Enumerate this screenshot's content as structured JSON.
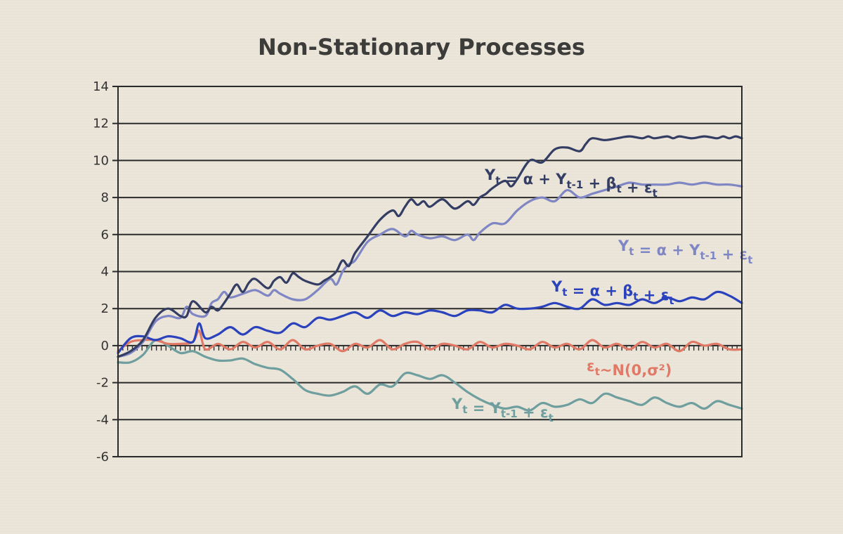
{
  "chart_data": {
    "type": "line",
    "title": "Non-Stationary Processes",
    "xlabel": "",
    "ylabel": "",
    "ylim": [
      -6,
      14
    ],
    "yticks": [
      -6,
      -4,
      -2,
      0,
      2,
      4,
      6,
      8,
      10,
      12,
      14
    ],
    "ytick_labels": [
      "-6",
      "-4",
      "-2",
      "0",
      "2",
      "4",
      "6",
      "8",
      "10",
      "12",
      "14"
    ],
    "xlim": [
      0,
      100
    ],
    "grid": true,
    "series": [
      {
        "name": "Yt = α + Yt-1 + βt + εt",
        "label": [
          [
            "Y",
            ""
          ],
          [
            "t",
            "sub"
          ],
          [
            " = α + Y",
            ""
          ],
          [
            "t-1",
            "sub"
          ],
          [
            " + β",
            ""
          ],
          [
            "t",
            "sub"
          ],
          [
            " + ε",
            ""
          ],
          [
            "t",
            "sub"
          ]
        ],
        "color": "#343d63",
        "x": [
          0,
          2,
          4,
          6,
          8,
          10,
          11,
          12,
          14,
          15,
          16,
          17,
          18,
          19,
          20,
          21,
          22,
          24,
          25,
          26,
          27,
          28,
          29,
          30,
          32,
          33,
          34,
          35,
          36,
          37,
          38,
          40,
          42,
          44,
          45,
          46,
          47,
          48,
          49,
          50,
          52,
          54,
          56,
          57,
          58,
          59,
          60,
          62,
          63,
          64,
          66,
          68,
          70,
          72,
          74,
          75,
          76,
          78,
          80,
          82,
          84,
          85,
          86,
          88,
          89,
          90,
          92,
          94,
          96,
          97,
          98,
          99,
          100
        ],
        "y": [
          -0.6,
          -0.3,
          0.3,
          1.5,
          2.0,
          1.6,
          1.6,
          2.4,
          1.8,
          2.1,
          1.9,
          2.3,
          2.8,
          3.3,
          2.9,
          3.4,
          3.6,
          3.1,
          3.5,
          3.7,
          3.4,
          3.9,
          3.7,
          3.5,
          3.3,
          3.5,
          3.7,
          4.0,
          4.6,
          4.3,
          5.0,
          5.9,
          6.8,
          7.3,
          7.0,
          7.5,
          7.9,
          7.6,
          7.8,
          7.5,
          7.9,
          7.4,
          7.8,
          7.6,
          8.0,
          8.2,
          8.5,
          8.9,
          8.6,
          9.0,
          10.0,
          9.9,
          10.6,
          10.7,
          10.5,
          10.9,
          11.2,
          11.1,
          11.2,
          11.3,
          11.2,
          11.3,
          11.2,
          11.3,
          11.2,
          11.3,
          11.2,
          11.3,
          11.2,
          11.3,
          11.2,
          11.3,
          11.2
        ]
      },
      {
        "name": "Yt = α + Yt-1 + εt",
        "label": [
          [
            "Y",
            ""
          ],
          [
            "t",
            "sub"
          ],
          [
            " = α + Y",
            ""
          ],
          [
            "t-1",
            "sub"
          ],
          [
            " + ε",
            ""
          ],
          [
            "t",
            "sub"
          ]
        ],
        "color": "#7f86c4",
        "x": [
          0,
          2,
          4,
          6,
          8,
          10,
          11,
          12,
          14,
          15,
          16,
          17,
          18,
          20,
          22,
          24,
          25,
          26,
          28,
          30,
          32,
          34,
          35,
          36,
          37,
          38,
          40,
          42,
          44,
          46,
          47,
          48,
          50,
          52,
          54,
          56,
          57,
          58,
          60,
          62,
          64,
          66,
          68,
          70,
          72,
          74,
          76,
          78,
          80,
          82,
          84,
          86,
          88,
          90,
          92,
          94,
          96,
          98,
          100
        ],
        "y": [
          -0.6,
          -0.4,
          0.2,
          1.3,
          1.6,
          1.5,
          2.1,
          1.7,
          1.6,
          2.3,
          2.5,
          2.9,
          2.6,
          2.8,
          3.0,
          2.7,
          3.0,
          2.8,
          2.5,
          2.5,
          3.0,
          3.6,
          3.3,
          4.0,
          4.4,
          4.6,
          5.6,
          6.0,
          6.3,
          5.9,
          6.2,
          6.0,
          5.8,
          5.9,
          5.7,
          6.0,
          5.7,
          6.1,
          6.6,
          6.6,
          7.3,
          7.8,
          8.0,
          7.8,
          8.4,
          8.0,
          8.2,
          8.4,
          8.6,
          8.8,
          8.7,
          8.7,
          8.7,
          8.8,
          8.7,
          8.8,
          8.7,
          8.7,
          8.6
        ]
      },
      {
        "name": "Yt = α + βt + εt",
        "label": [
          [
            "Y",
            ""
          ],
          [
            "t",
            "sub"
          ],
          [
            " = α + β",
            ""
          ],
          [
            "t",
            "sub"
          ],
          [
            " + ε",
            ""
          ],
          [
            "t",
            "sub"
          ]
        ],
        "color": "#2b42bd",
        "x": [
          0,
          2,
          4,
          6,
          8,
          10,
          12,
          13,
          14,
          16,
          18,
          20,
          22,
          24,
          26,
          28,
          30,
          32,
          34,
          36,
          38,
          40,
          42,
          44,
          46,
          48,
          50,
          52,
          54,
          56,
          58,
          60,
          62,
          64,
          66,
          68,
          70,
          72,
          74,
          76,
          78,
          80,
          82,
          84,
          86,
          88,
          90,
          92,
          94,
          96,
          98,
          100
        ],
        "y": [
          -0.4,
          0.4,
          0.5,
          0.3,
          0.5,
          0.4,
          0.2,
          1.2,
          0.4,
          0.6,
          1.0,
          0.6,
          1.0,
          0.8,
          0.7,
          1.2,
          1.0,
          1.5,
          1.4,
          1.6,
          1.8,
          1.5,
          1.9,
          1.6,
          1.8,
          1.7,
          1.9,
          1.8,
          1.6,
          1.9,
          1.9,
          1.8,
          2.2,
          2.0,
          2.0,
          2.1,
          2.3,
          2.1,
          2.0,
          2.5,
          2.2,
          2.3,
          2.2,
          2.5,
          2.3,
          2.6,
          2.4,
          2.6,
          2.5,
          2.9,
          2.7,
          2.3
        ]
      },
      {
        "name": "εt~N(0,σ²)",
        "label": [
          [
            "ε",
            ""
          ],
          [
            "t",
            "sub"
          ],
          [
            "~N(0,σ²)",
            ""
          ]
        ],
        "color": "#e07a66",
        "x": [
          0,
          2,
          4,
          6,
          8,
          10,
          12,
          13,
          14,
          16,
          18,
          20,
          22,
          24,
          26,
          28,
          30,
          32,
          34,
          36,
          38,
          40,
          42,
          44,
          46,
          48,
          50,
          52,
          54,
          56,
          58,
          60,
          62,
          64,
          66,
          68,
          70,
          72,
          74,
          76,
          78,
          80,
          82,
          84,
          86,
          88,
          90,
          92,
          94,
          96,
          98,
          100
        ],
        "y": [
          -0.3,
          0.2,
          0.3,
          0.3,
          0.1,
          0.1,
          0.2,
          0.8,
          -0.2,
          0.1,
          -0.2,
          0.2,
          -0.1,
          0.2,
          -0.2,
          0.3,
          -0.2,
          0.0,
          0.1,
          -0.3,
          0.1,
          -0.1,
          0.3,
          -0.2,
          0.1,
          0.2,
          -0.2,
          0.1,
          0.0,
          -0.2,
          0.2,
          -0.1,
          0.1,
          0.0,
          -0.2,
          0.2,
          -0.1,
          0.1,
          -0.2,
          0.3,
          -0.1,
          0.1,
          -0.2,
          0.2,
          -0.1,
          0.1,
          -0.3,
          0.2,
          0.0,
          0.1,
          -0.2,
          -0.2
        ]
      },
      {
        "name": "Yt = Yt-1 + εt",
        "label": [
          [
            "Y",
            ""
          ],
          [
            "t",
            "sub"
          ],
          [
            " = Y",
            ""
          ],
          [
            "t-1",
            "sub"
          ],
          [
            " + ε",
            ""
          ],
          [
            "t",
            "sub"
          ]
        ],
        "color": "#6e9e9e",
        "x": [
          0,
          2,
          4,
          6,
          8,
          10,
          12,
          14,
          16,
          18,
          20,
          22,
          24,
          26,
          28,
          30,
          32,
          34,
          36,
          38,
          40,
          42,
          44,
          46,
          48,
          50,
          52,
          54,
          56,
          58,
          60,
          62,
          64,
          66,
          68,
          70,
          72,
          74,
          76,
          78,
          80,
          82,
          84,
          86,
          88,
          90,
          92,
          94,
          96,
          98,
          100
        ],
        "y": [
          -0.9,
          -0.9,
          -0.5,
          0.3,
          0.0,
          -0.4,
          -0.3,
          -0.6,
          -0.8,
          -0.8,
          -0.7,
          -1.0,
          -1.2,
          -1.3,
          -1.8,
          -2.4,
          -2.6,
          -2.7,
          -2.5,
          -2.2,
          -2.6,
          -2.1,
          -2.2,
          -1.5,
          -1.6,
          -1.8,
          -1.6,
          -2.0,
          -2.5,
          -2.9,
          -3.2,
          -3.4,
          -3.3,
          -3.5,
          -3.1,
          -3.3,
          -3.2,
          -2.9,
          -3.1,
          -2.6,
          -2.8,
          -3.0,
          -3.2,
          -2.8,
          -3.1,
          -3.3,
          -3.1,
          -3.4,
          -3.0,
          -3.2,
          -3.4
        ]
      }
    ]
  },
  "labels_layout_hint": "series labels placed beside lines"
}
